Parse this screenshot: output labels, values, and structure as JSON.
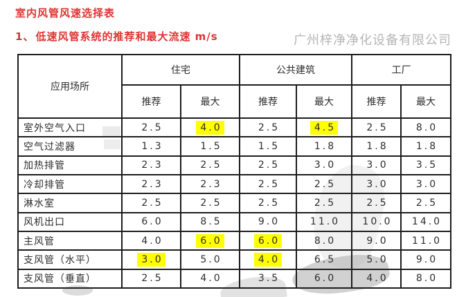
{
  "page": {
    "title": "室内风管风速选择表",
    "subtitle_prefix": "1、",
    "subtitle": "低速风管系统的推荐和最大流速 m/s",
    "company_watermark": "广州梓净净化设备有限公司"
  },
  "colors": {
    "heading_red": "#e03333",
    "highlight_yellow": "#ffff00",
    "watermark_gray": "#b5b5b5",
    "table_border": "#1c1c1c",
    "table_text": "#2c2c2c"
  },
  "table": {
    "corner_header": "应用场所",
    "groups": [
      {
        "label": "住宅"
      },
      {
        "label": "公共建筑"
      },
      {
        "label": "工厂"
      }
    ],
    "sub_headers": [
      "推荐",
      "最大"
    ],
    "rows": [
      {
        "label": "室外空气入口",
        "values": [
          "2.5",
          "4.0",
          "2.5",
          "4.5",
          "2.5",
          "8.0"
        ],
        "highlights": [
          1,
          3
        ]
      },
      {
        "label": "空气过滤器",
        "values": [
          "1.3",
          "1.5",
          "1.5",
          "1.8",
          "1.8",
          "1.8"
        ],
        "highlights": []
      },
      {
        "label": "加热排管",
        "values": [
          "2.3",
          "2.5",
          "2.5",
          "3.0",
          "3.0",
          "3.5"
        ],
        "highlights": []
      },
      {
        "label": "冷却排管",
        "values": [
          "2.3",
          "2.3",
          "2.5",
          "2.5",
          "3.0",
          "3.0"
        ],
        "highlights": []
      },
      {
        "label": "淋水室",
        "values": [
          "2.5",
          "2.5",
          "2.5",
          "2.5",
          "2.5",
          "2.5"
        ],
        "highlights": []
      },
      {
        "label": "风机出口",
        "values": [
          "6.0",
          "8.5",
          "9.0",
          "11.0",
          "10.0",
          "14.0"
        ],
        "highlights": []
      },
      {
        "label": "主风管",
        "values": [
          "4.0",
          "6.0",
          "6.0",
          "8.0",
          "9.0",
          "11.0"
        ],
        "highlights": [
          1,
          2
        ]
      },
      {
        "label": "支风管（水平）",
        "values": [
          "3.0",
          "5.0",
          "4.0",
          "6.5",
          "5.0",
          "9.0"
        ],
        "highlights": [
          0,
          2
        ]
      },
      {
        "label": "支风管（垂直）",
        "values": [
          "2.5",
          "4.0",
          "3.5",
          "6.0",
          "4.0",
          "8.0"
        ],
        "highlights": []
      }
    ]
  }
}
